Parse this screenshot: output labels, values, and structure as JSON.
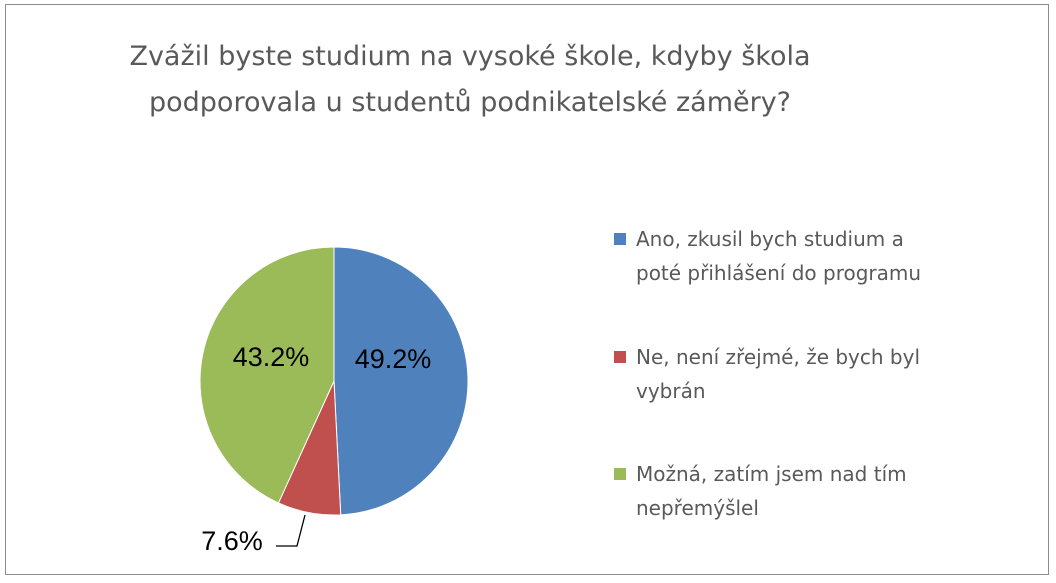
{
  "chart_data": {
    "type": "pie",
    "title": "Zvážil byste studium na vysoké škole, kdyby škola podporovala u studentů podnikatelské záměry?",
    "title_lines": [
      "Zvážil byste studium na vysoké škole, kdyby škola",
      "podporovala u studentů podnikatelské záměry?"
    ],
    "slices": [
      {
        "label": "Ano, zkusil bych studium a poté přihlášení do programu",
        "label_lines": [
          "Ano, zkusil bych studium a",
          "poté přihlášení do programu"
        ],
        "value": 49.2,
        "value_label": "49.2%",
        "color": "#4f81bd"
      },
      {
        "label": "Ne, není zřejmé, že bych byl vybrán",
        "label_lines": [
          "Ne, není zřejmé, že bych byl",
          "vybrán"
        ],
        "value": 7.6,
        "value_label": "7.6%",
        "color": "#c0504d"
      },
      {
        "label": "Možná, zatím jsem nad tím nepřemýšlel",
        "label_lines": [
          "Možná, zatím jsem nad tím",
          "nepřemýšlel"
        ],
        "value": 43.2,
        "value_label": "43.2%",
        "color": "#9bbb59"
      }
    ],
    "start_angle": "12 o'clock",
    "direction": "clockwise",
    "legend_position": "right"
  }
}
